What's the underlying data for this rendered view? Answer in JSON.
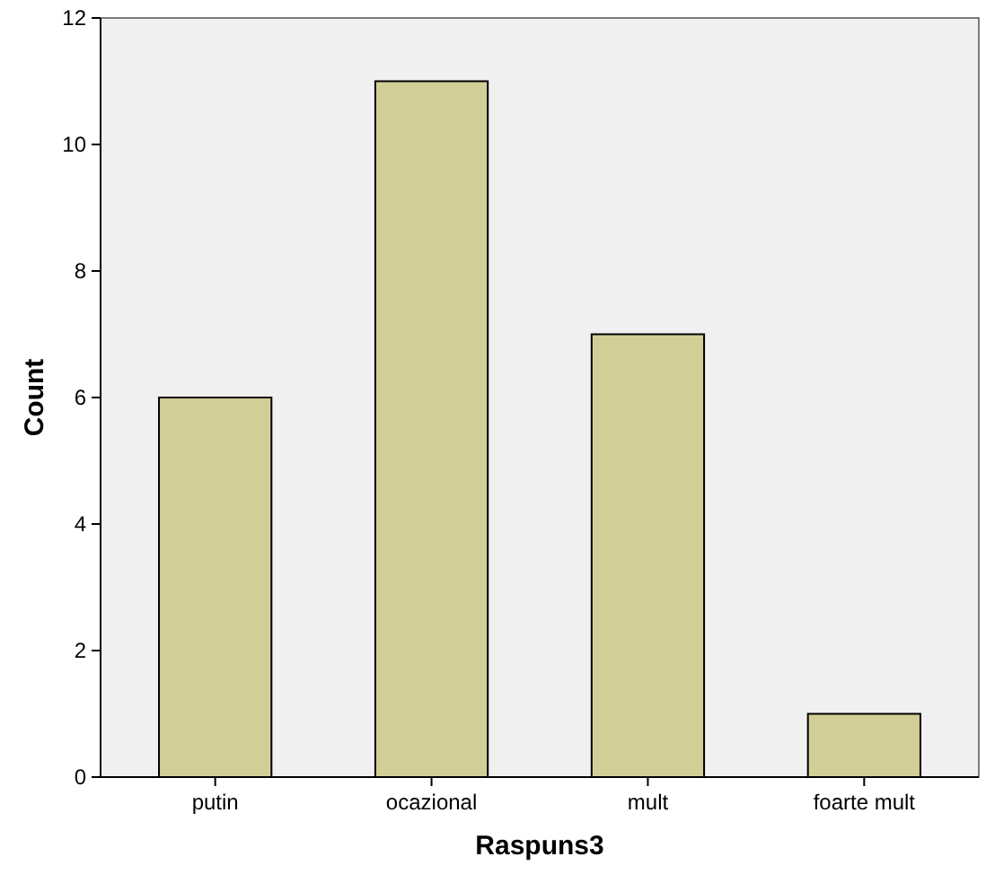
{
  "chart_data": {
    "type": "bar",
    "xlabel": "Raspuns3",
    "ylabel": "Count",
    "categories": [
      "putin",
      "ocazional",
      "mult",
      "foarte mult"
    ],
    "values": [
      6,
      11,
      7,
      1
    ],
    "color": "#d3ce97",
    "ylim": [
      0,
      12
    ],
    "yticks": [
      0,
      2,
      4,
      6,
      8,
      10,
      12
    ],
    "grid": false
  }
}
